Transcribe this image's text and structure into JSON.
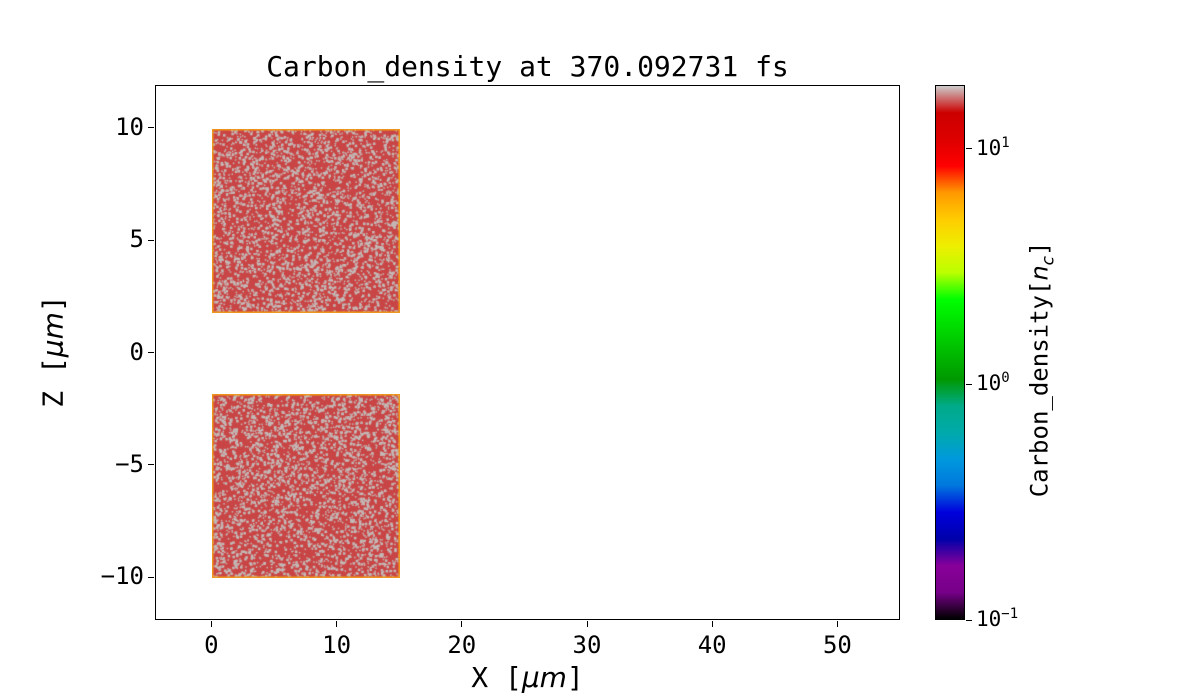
{
  "chart_data": {
    "type": "heatmap",
    "title": "Carbon_density at 370.092731 fs",
    "time_fs": 370.092731,
    "xlabel": {
      "prefix": "X [",
      "math": "μm",
      "suffix": "]"
    },
    "ylabel": {
      "prefix": "Z [",
      "math": "μm",
      "suffix": "]"
    },
    "xlim": [
      -4.5,
      55.0
    ],
    "ylim": [
      -11.9,
      11.9
    ],
    "grid": false,
    "legend": null,
    "x_ticks": [
      {
        "value": 0,
        "label": "0"
      },
      {
        "value": 10,
        "label": "10"
      },
      {
        "value": 20,
        "label": "20"
      },
      {
        "value": 30,
        "label": "30"
      },
      {
        "value": 40,
        "label": "40"
      },
      {
        "value": 50,
        "label": "50"
      }
    ],
    "y_ticks": [
      {
        "value": 10,
        "label": "10"
      },
      {
        "value": 5,
        "label": "5"
      },
      {
        "value": 0,
        "label": "0"
      },
      {
        "value": -5,
        "label": "−5"
      },
      {
        "value": -10,
        "label": "−10"
      }
    ],
    "blocks": [
      {
        "name": "density-block-upper",
        "x0": 0,
        "x1": 15,
        "z0": 1.8,
        "z1": 10,
        "density_nc_approx": 12
      },
      {
        "name": "density-block-lower",
        "x0": 0,
        "x1": 15,
        "z0": -10,
        "z1": -1.8,
        "density_nc_approx": 12
      }
    ],
    "speckle_density": 0.1,
    "colors": {
      "block_base": "#c94545",
      "block_speckle": "#c3bab8",
      "block_edge": "#f0981c",
      "axis": "#000000",
      "background": "#ffffff"
    },
    "colorbar": {
      "label": {
        "prefix": "Carbon_density[",
        "math": "n",
        "sub": "c",
        "suffix": "]"
      },
      "scale": "log",
      "lim": [
        0.1,
        18.6
      ],
      "ticks": [
        {
          "value": 10,
          "base": "10",
          "exp": "1"
        },
        {
          "value": 1,
          "base": "10",
          "exp": "0"
        },
        {
          "value": 0.1,
          "base": "10",
          "exp": "−1"
        }
      ],
      "colormap": "nipy_spectral",
      "colormap_stops": [
        [
          0.0,
          "#000000"
        ],
        [
          0.05,
          "#770088"
        ],
        [
          0.1,
          "#880099"
        ],
        [
          0.15,
          "#0000aa"
        ],
        [
          0.2,
          "#0000dd"
        ],
        [
          0.25,
          "#0077dd"
        ],
        [
          0.3,
          "#0099dd"
        ],
        [
          0.35,
          "#00aaaa"
        ],
        [
          0.4,
          "#00aa88"
        ],
        [
          0.45,
          "#009900"
        ],
        [
          0.5,
          "#00bb00"
        ],
        [
          0.55,
          "#00dd00"
        ],
        [
          0.6,
          "#00ff00"
        ],
        [
          0.65,
          "#bbff00"
        ],
        [
          0.7,
          "#eeee00"
        ],
        [
          0.75,
          "#ffcc00"
        ],
        [
          0.8,
          "#ff9900"
        ],
        [
          0.85,
          "#ff0000"
        ],
        [
          0.9,
          "#dd0000"
        ],
        [
          0.95,
          "#cc0000"
        ],
        [
          1.0,
          "#cccccc"
        ]
      ]
    }
  }
}
